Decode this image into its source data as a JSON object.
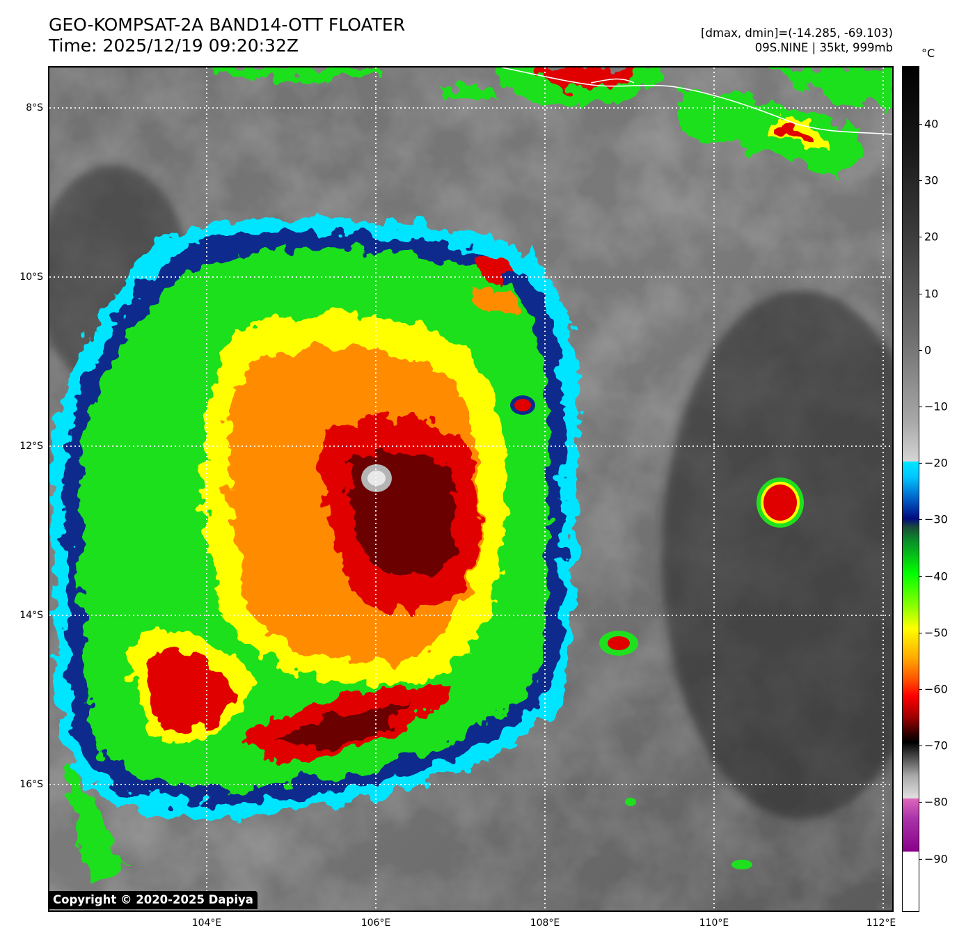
{
  "header": {
    "title_line1": "GEO-KOMPSAT-2A BAND14-OTT FLOATER",
    "title_line2": "Time: 2025/12/19 09:20:32Z",
    "range_info": "[dmax, dmin]=(-14.285, -69.103)",
    "storm_info": "09S.NINE | 35kt, 999mb"
  },
  "map": {
    "lat_labels": [
      "8°S",
      "10°S",
      "12°S",
      "14°S",
      "16°S"
    ],
    "lon_labels": [
      "104°E",
      "106°E",
      "108°E",
      "110°E",
      "112°E"
    ],
    "copyright": "Copyright © 2020-2025 Dapiya"
  },
  "colorbar": {
    "unit": "°C",
    "ticks": [
      "40",
      "30",
      "20",
      "10",
      "0",
      "−10",
      "−20",
      "−30",
      "−40",
      "−50",
      "−60",
      "−70",
      "−80",
      "−90"
    ]
  },
  "colors": {
    "cyan": "#00e5ff",
    "blue": "#0a2a8c",
    "green": "#1fe01f",
    "yellow": "#ffff00",
    "orange": "#ff8c00",
    "red": "#e00000",
    "darkred": "#6a0000",
    "magenta": "#cc55cc"
  }
}
